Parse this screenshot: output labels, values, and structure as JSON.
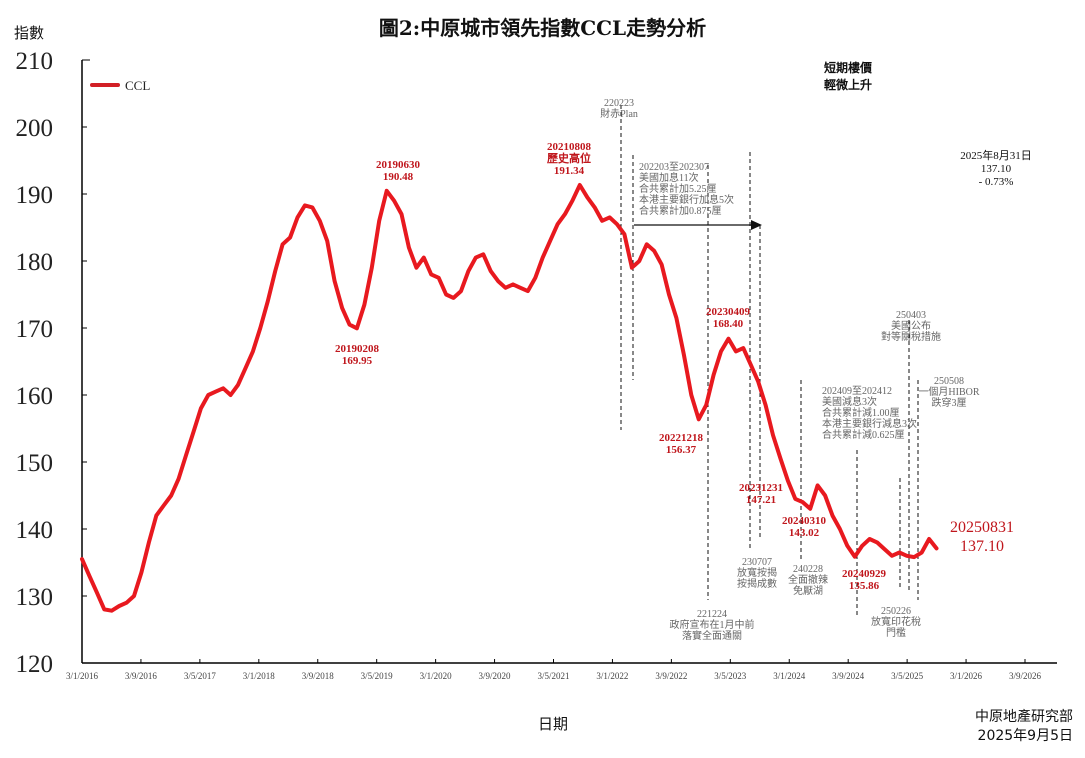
{
  "chart_data": {
    "type": "line",
    "title": "圖2:中原城市領先指數CCL走勢分析",
    "xlabel": "日期",
    "ylabel": "指數",
    "ylim": [
      120,
      210
    ],
    "yticks": [
      120,
      130,
      140,
      150,
      160,
      170,
      180,
      190,
      200,
      210
    ],
    "xticks": [
      "3/1/2016",
      "3/9/2016",
      "3/5/2017",
      "3/1/2018",
      "3/9/2018",
      "3/5/2019",
      "3/1/2020",
      "3/9/2020",
      "3/5/2021",
      "3/1/2022",
      "3/9/2022",
      "3/5/2023",
      "3/1/2024",
      "3/9/2024",
      "3/5/2025",
      "3/1/2026",
      "3/9/2026"
    ],
    "grid": false,
    "legend": {
      "position": "top-left",
      "entries": [
        "CCL"
      ]
    },
    "series": [
      {
        "name": "CCL",
        "color": "#e8191f",
        "points": [
          [
            "2016-01",
            135.5
          ],
          [
            "2016-02",
            133.0
          ],
          [
            "2016-03",
            130.5
          ],
          [
            "2016-04",
            128.0
          ],
          [
            "2016-05",
            127.8
          ],
          [
            "2016-06",
            128.5
          ],
          [
            "2016-07",
            129.0
          ],
          [
            "2016-08",
            130.0
          ],
          [
            "2016-09",
            133.5
          ],
          [
            "2016-10",
            138.0
          ],
          [
            "2016-11",
            142.0
          ],
          [
            "2016-12",
            143.5
          ],
          [
            "2017-01",
            145.0
          ],
          [
            "2017-02",
            147.5
          ],
          [
            "2017-03",
            151.0
          ],
          [
            "2017-04",
            154.5
          ],
          [
            "2017-05",
            158.0
          ],
          [
            "2017-06",
            160.0
          ],
          [
            "2017-07",
            160.5
          ],
          [
            "2017-08",
            161.0
          ],
          [
            "2017-09",
            160.0
          ],
          [
            "2017-10",
            161.5
          ],
          [
            "2017-11",
            164.0
          ],
          [
            "2017-12",
            166.5
          ],
          [
            "2018-01",
            170.0
          ],
          [
            "2018-02",
            174.0
          ],
          [
            "2018-03",
            178.5
          ],
          [
            "2018-04",
            182.5
          ],
          [
            "2018-05",
            183.5
          ],
          [
            "2018-06",
            186.5
          ],
          [
            "2018-07",
            188.3
          ],
          [
            "2018-08",
            188.0
          ],
          [
            "2018-09",
            186.0
          ],
          [
            "2018-10",
            183.0
          ],
          [
            "2018-11",
            177.0
          ],
          [
            "2018-12",
            173.0
          ],
          [
            "2019-01",
            170.5
          ],
          [
            "2019-02",
            169.95
          ],
          [
            "2019-03",
            173.5
          ],
          [
            "2019-04",
            179.0
          ],
          [
            "2019-05",
            186.0
          ],
          [
            "2019-06",
            190.48
          ],
          [
            "2019-07",
            189.0
          ],
          [
            "2019-08",
            187.0
          ],
          [
            "2019-09",
            182.0
          ],
          [
            "2019-10",
            179.0
          ],
          [
            "2019-11",
            180.5
          ],
          [
            "2019-12",
            178.0
          ],
          [
            "2020-01",
            177.5
          ],
          [
            "2020-02",
            175.0
          ],
          [
            "2020-03",
            174.5
          ],
          [
            "2020-04",
            175.5
          ],
          [
            "2020-05",
            178.5
          ],
          [
            "2020-06",
            180.5
          ],
          [
            "2020-07",
            181.0
          ],
          [
            "2020-08",
            178.5
          ],
          [
            "2020-09",
            177.0
          ],
          [
            "2020-10",
            176.0
          ],
          [
            "2020-11",
            176.5
          ],
          [
            "2020-12",
            176.0
          ],
          [
            "2021-01",
            175.5
          ],
          [
            "2021-02",
            177.5
          ],
          [
            "2021-03",
            180.5
          ],
          [
            "2021-04",
            183.0
          ],
          [
            "2021-05",
            185.5
          ],
          [
            "2021-06",
            187.0
          ],
          [
            "2021-07",
            189.0
          ],
          [
            "2021-08",
            191.34
          ],
          [
            "2021-09",
            189.5
          ],
          [
            "2021-10",
            188.0
          ],
          [
            "2021-11",
            186.0
          ],
          [
            "2021-12",
            186.5
          ],
          [
            "2022-01",
            185.5
          ],
          [
            "2022-02",
            184.0
          ],
          [
            "2022-03",
            179.0
          ],
          [
            "2022-04",
            180.0
          ],
          [
            "2022-05",
            182.5
          ],
          [
            "2022-06",
            181.5
          ],
          [
            "2022-07",
            179.5
          ],
          [
            "2022-08",
            175.0
          ],
          [
            "2022-09",
            171.5
          ],
          [
            "2022-10",
            166.0
          ],
          [
            "2022-11",
            160.0
          ],
          [
            "2022-12",
            156.37
          ],
          [
            "2023-01",
            158.5
          ],
          [
            "2023-02",
            163.0
          ],
          [
            "2023-03",
            166.5
          ],
          [
            "2023-04",
            168.4
          ],
          [
            "2023-05",
            166.5
          ],
          [
            "2023-06",
            167.0
          ],
          [
            "2023-07",
            164.5
          ],
          [
            "2023-08",
            162.0
          ],
          [
            "2023-09",
            158.5
          ],
          [
            "2023-10",
            154.0
          ],
          [
            "2023-11",
            150.5
          ],
          [
            "2023-12",
            147.21
          ],
          [
            "2024-01",
            144.5
          ],
          [
            "2024-02",
            144.0
          ],
          [
            "2024-03",
            143.02
          ],
          [
            "2024-04",
            146.5
          ],
          [
            "2024-05",
            145.0
          ],
          [
            "2024-06",
            142.0
          ],
          [
            "2024-07",
            140.0
          ],
          [
            "2024-08",
            137.5
          ],
          [
            "2024-09",
            135.86
          ],
          [
            "2024-10",
            137.5
          ],
          [
            "2024-11",
            138.5
          ],
          [
            "2024-12",
            138.0
          ],
          [
            "2025-01",
            137.0
          ],
          [
            "2025-02",
            136.0
          ],
          [
            "2025-03",
            136.5
          ],
          [
            "2025-04",
            136.0
          ],
          [
            "2025-05",
            135.8
          ],
          [
            "2025-06",
            136.5
          ],
          [
            "2025-07",
            138.5
          ],
          [
            "2025-08",
            137.1
          ]
        ]
      }
    ],
    "annotations": [
      {
        "id": "a1",
        "lines": [
          "20190208",
          "169.95"
        ],
        "style": "red"
      },
      {
        "id": "a2",
        "lines": [
          "20190630",
          "190.48"
        ],
        "style": "red"
      },
      {
        "id": "a3",
        "lines": [
          "20210808",
          "歷史高位",
          "191.34"
        ],
        "style": "red"
      },
      {
        "id": "a4",
        "lines": [
          "20221218",
          "156.37"
        ],
        "style": "red"
      },
      {
        "id": "a5",
        "lines": [
          "20230409",
          "168.40"
        ],
        "style": "red"
      },
      {
        "id": "a6",
        "lines": [
          "20231231",
          "147.21"
        ],
        "style": "red"
      },
      {
        "id": "a7",
        "lines": [
          "20240310",
          "143.02"
        ],
        "style": "red"
      },
      {
        "id": "a8",
        "lines": [
          "20240929",
          "135.86"
        ],
        "style": "red"
      },
      {
        "id": "a9",
        "lines": [
          "20250831",
          "137.10"
        ],
        "style": "red-large"
      },
      {
        "id": "e1",
        "lines": [
          "220223",
          "財赤Plan"
        ],
        "style": "gray"
      },
      {
        "id": "e2",
        "lines": [
          "202203至202307",
          "美國加息11次",
          "合共累計加5.25厘",
          "本港主要銀行加息5次",
          "合共累計加0.875厘"
        ],
        "style": "gray"
      },
      {
        "id": "e3",
        "lines": [
          "221224",
          "政府宣布在1月中前",
          "落實全面通關"
        ],
        "style": "gray"
      },
      {
        "id": "e4",
        "lines": [
          "230707",
          "放寬按揭",
          "按揭成數"
        ],
        "style": "gray"
      },
      {
        "id": "e5",
        "lines": [
          "240228",
          "全面撤辣",
          "免厭湖"
        ],
        "style": "gray"
      },
      {
        "id": "e6",
        "lines": [
          "202409至202412",
          "美國減息3次",
          "合共累計減1.00厘",
          "本港主要銀行減息3次",
          "合共累計減0.625厘"
        ],
        "style": "gray"
      },
      {
        "id": "e7",
        "lines": [
          "250226",
          "放寬印花稅",
          "門檻"
        ],
        "style": "gray"
      },
      {
        "id": "e8",
        "lines": [
          "250403",
          "美國公布",
          "對等關稅措施"
        ],
        "style": "gray"
      },
      {
        "id": "e9",
        "lines": [
          "250508",
          "一個月HIBOR",
          "跌穿3厘"
        ],
        "style": "gray"
      },
      {
        "id": "n1",
        "lines": [
          "短期樓價",
          "輕微上升"
        ],
        "style": "bold-black"
      },
      {
        "id": "n2",
        "lines": [
          "2025年8月31日",
          "137.10",
          "- 0.73%"
        ],
        "style": "black"
      }
    ]
  },
  "header": {
    "title": "圖2:中原城市領先指數CCL走勢分析",
    "ylabel": "指數"
  },
  "footer": {
    "xlabel": "日期",
    "source": "中原地產研究部",
    "date": "2025年9月5日"
  }
}
